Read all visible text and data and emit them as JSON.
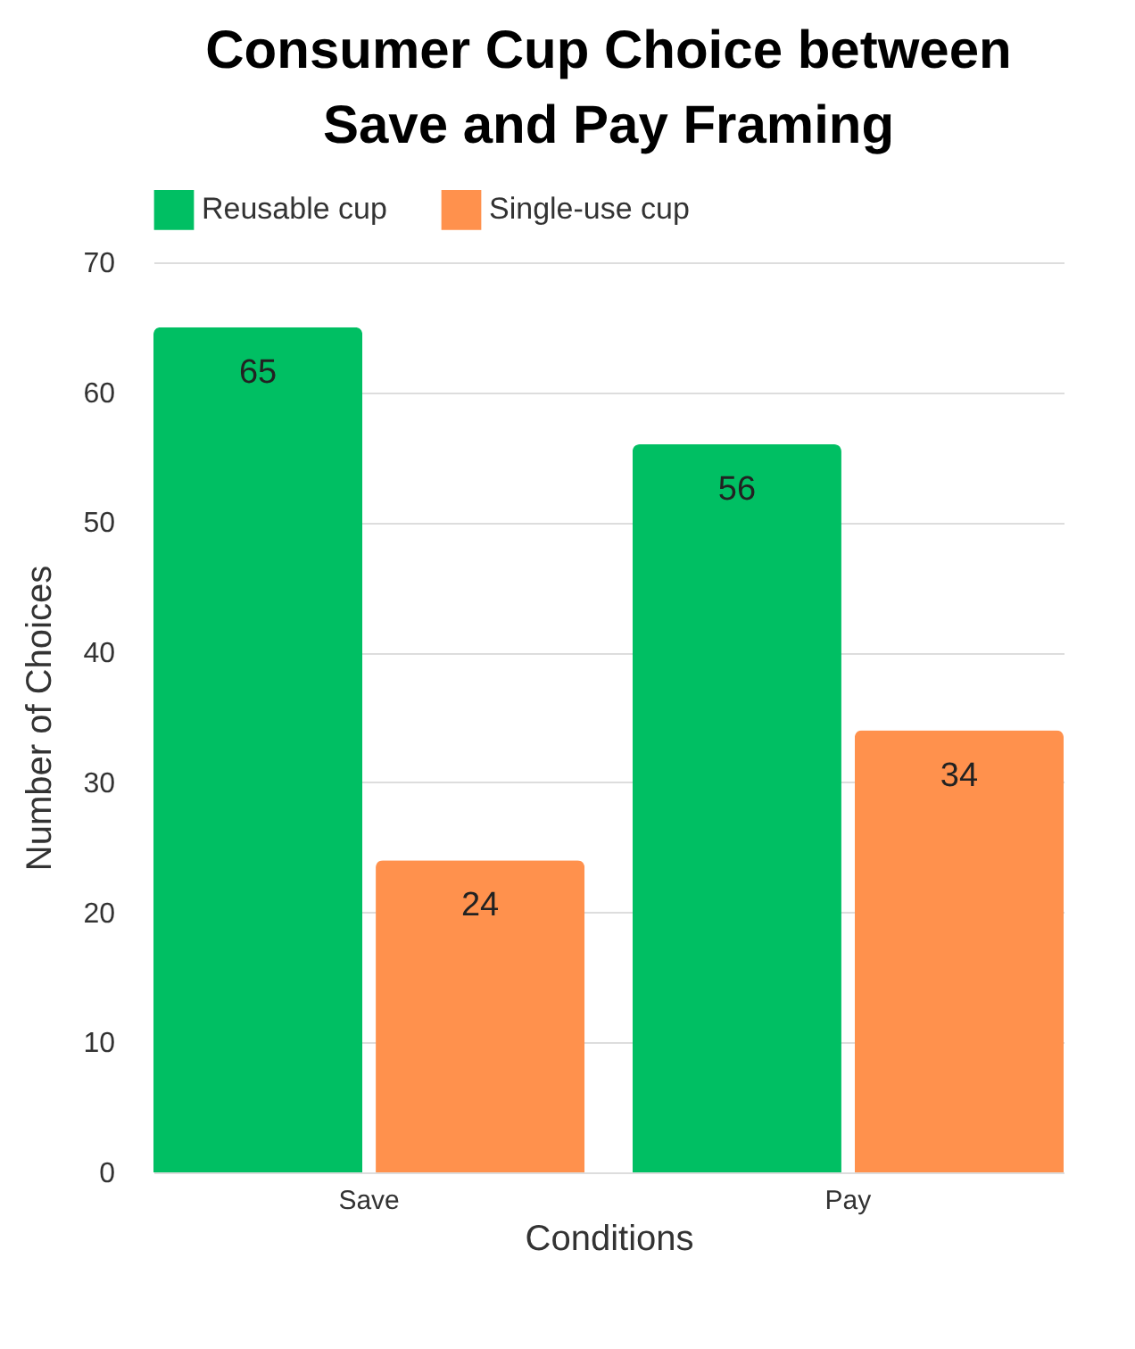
{
  "chart_data": {
    "type": "bar",
    "title": "Consumer Cup Choice between Save and Pay Framing",
    "xlabel": "Conditions",
    "ylabel": "Number of Choices",
    "categories": [
      "Save",
      "Pay"
    ],
    "series": [
      {
        "name": "Reusable cup",
        "color": "#00bf63",
        "values": [
          65,
          56
        ]
      },
      {
        "name": "Single-use cup",
        "color": "#ff914d",
        "values": [
          24,
          34
        ]
      }
    ],
    "ylim": [
      0,
      70
    ],
    "yticks": [
      0,
      10,
      20,
      30,
      40,
      50,
      60,
      70
    ],
    "grid": "y",
    "legend": "top",
    "data_labels": true
  }
}
